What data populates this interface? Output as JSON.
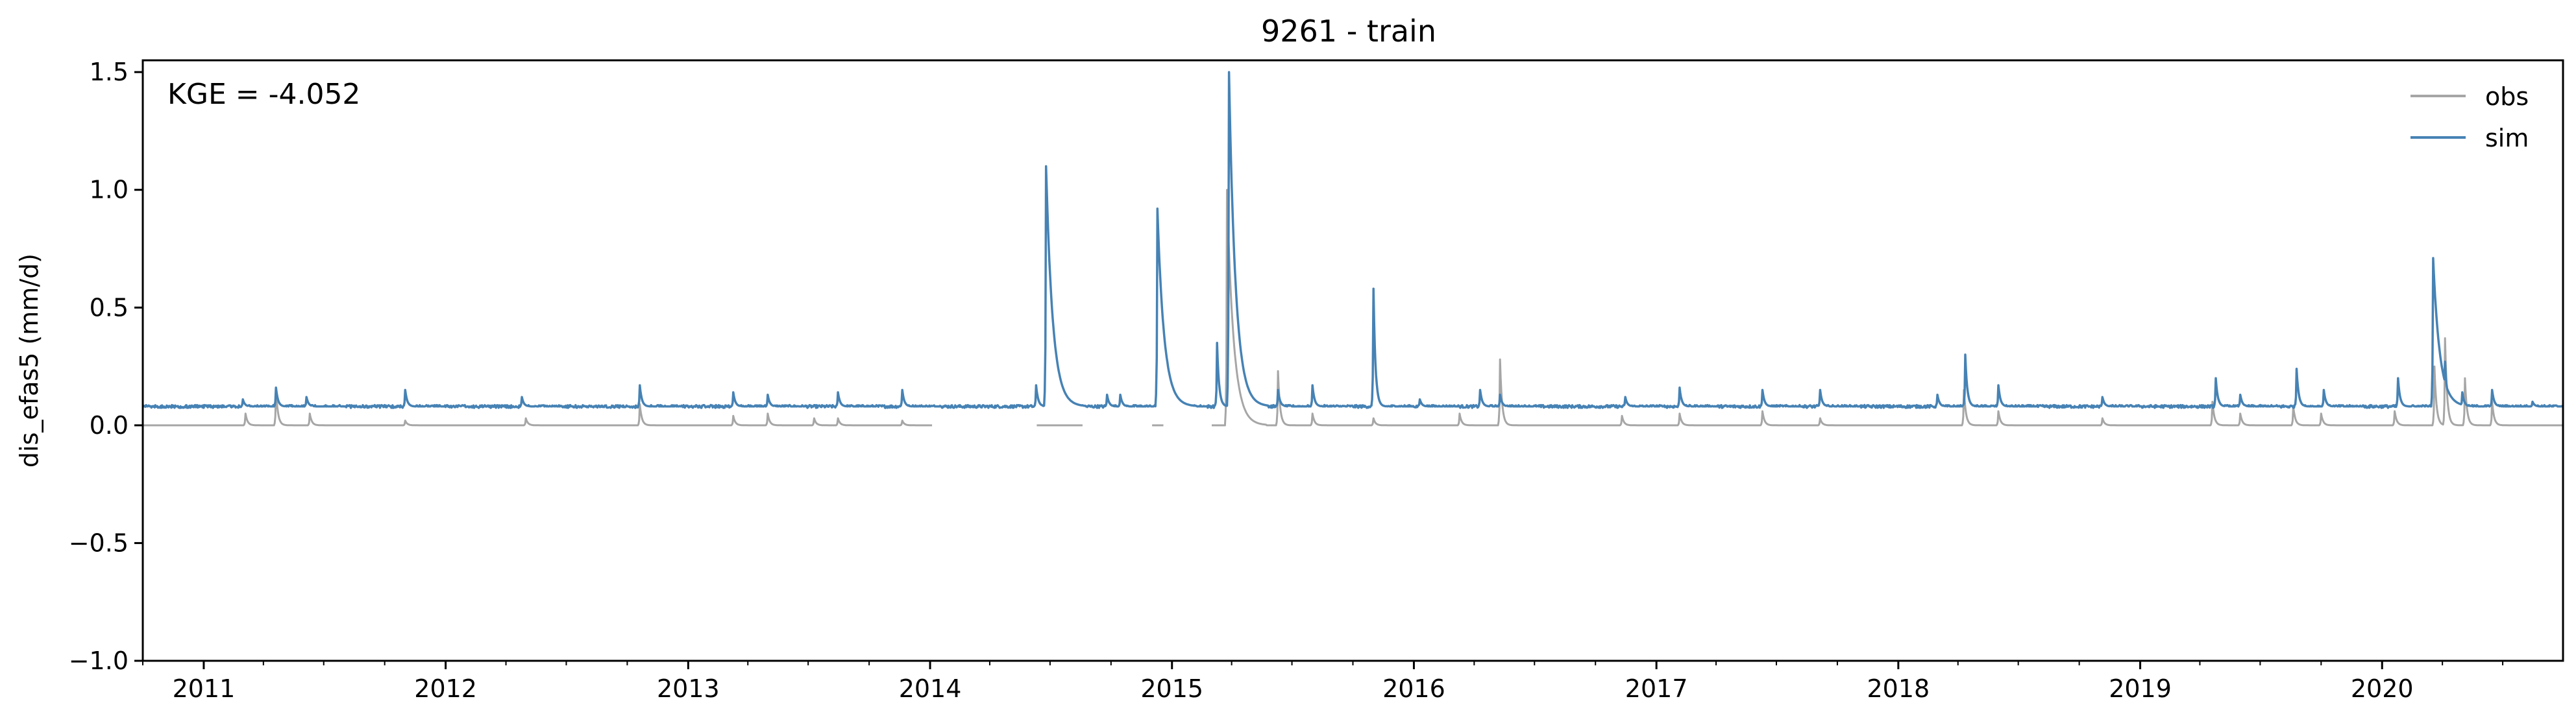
{
  "chart_data": {
    "type": "line",
    "title": "9261 - train",
    "ylabel": "dis_efas5 (mm/d)",
    "xlabel": "",
    "xlim": [
      "2010-10-01",
      "2020-09-30"
    ],
    "ylim": [
      -1.0,
      1.55
    ],
    "y_ticks": [
      "1.5",
      "1.0",
      "0.5",
      "0.0",
      "−0.5",
      "−1.0"
    ],
    "x_ticks": [
      "2011",
      "2012",
      "2013",
      "2014",
      "2015",
      "2016",
      "2017",
      "2018",
      "2019",
      "2020"
    ],
    "annotation": "KGE = -4.052",
    "legend_position": "upper right",
    "grid": false,
    "series": [
      {
        "name": "obs",
        "color": "#a6a6a6",
        "baseline": 0.0,
        "gaps": [
          [
            "2014-01-05",
            "2014-06-10"
          ],
          [
            "2014-08-20",
            "2014-12-01"
          ],
          [
            "2014-12-20",
            "2015-03-01"
          ]
        ],
        "peaks": [
          [
            "2011-03-05",
            0.05
          ],
          [
            "2011-04-20",
            0.15
          ],
          [
            "2011-06-10",
            0.05
          ],
          [
            "2011-11-01",
            0.02
          ],
          [
            "2012-05-01",
            0.03
          ],
          [
            "2012-10-20",
            0.09
          ],
          [
            "2013-03-10",
            0.04
          ],
          [
            "2013-05-01",
            0.05
          ],
          [
            "2013-07-10",
            0.03
          ],
          [
            "2013-08-15",
            0.03
          ],
          [
            "2013-11-20",
            0.02
          ],
          [
            "2015-03-25",
            1.0
          ],
          [
            "2015-06-10",
            0.23
          ],
          [
            "2015-08-01",
            0.05
          ],
          [
            "2015-11-01",
            0.03
          ],
          [
            "2016-03-10",
            0.05
          ],
          [
            "2016-05-10",
            0.28
          ],
          [
            "2016-11-10",
            0.04
          ],
          [
            "2017-02-05",
            0.05
          ],
          [
            "2017-06-10",
            0.06
          ],
          [
            "2017-09-05",
            0.03
          ],
          [
            "2018-04-10",
            0.15
          ],
          [
            "2018-06-01",
            0.06
          ],
          [
            "2018-11-05",
            0.03
          ],
          [
            "2019-04-20",
            0.1
          ],
          [
            "2019-06-01",
            0.05
          ],
          [
            "2019-08-20",
            0.08
          ],
          [
            "2019-10-01",
            0.05
          ],
          [
            "2020-01-20",
            0.06
          ],
          [
            "2020-03-20",
            0.25
          ],
          [
            "2020-04-05",
            0.37
          ],
          [
            "2020-05-05",
            0.2
          ],
          [
            "2020-06-15",
            0.1
          ]
        ]
      },
      {
        "name": "sim",
        "color": "#4682b4",
        "baseline": 0.08,
        "peaks": [
          [
            "2011-03-01",
            0.11
          ],
          [
            "2011-04-20",
            0.16
          ],
          [
            "2011-06-05",
            0.12
          ],
          [
            "2011-11-01",
            0.15
          ],
          [
            "2012-04-25",
            0.12
          ],
          [
            "2012-10-20",
            0.17
          ],
          [
            "2013-03-10",
            0.14
          ],
          [
            "2013-05-01",
            0.13
          ],
          [
            "2013-08-15",
            0.14
          ],
          [
            "2013-11-20",
            0.15
          ],
          [
            "2014-06-10",
            0.17
          ],
          [
            "2014-06-25",
            1.1
          ],
          [
            "2014-09-25",
            0.13
          ],
          [
            "2014-10-15",
            0.13
          ],
          [
            "2014-12-10",
            0.92
          ],
          [
            "2014-12-25",
            0.27
          ],
          [
            "2015-03-10",
            0.35
          ],
          [
            "2015-03-28",
            1.5
          ],
          [
            "2015-06-10",
            0.15
          ],
          [
            "2015-08-01",
            0.17
          ],
          [
            "2015-11-01",
            0.58
          ],
          [
            "2016-01-10",
            0.11
          ],
          [
            "2016-04-10",
            0.15
          ],
          [
            "2016-05-10",
            0.13
          ],
          [
            "2016-11-15",
            0.12
          ],
          [
            "2017-02-05",
            0.16
          ],
          [
            "2017-06-10",
            0.15
          ],
          [
            "2017-09-05",
            0.15
          ],
          [
            "2018-03-01",
            0.13
          ],
          [
            "2018-04-12",
            0.3
          ],
          [
            "2018-06-01",
            0.17
          ],
          [
            "2018-11-05",
            0.12
          ],
          [
            "2019-04-25",
            0.2
          ],
          [
            "2019-06-01",
            0.13
          ],
          [
            "2019-08-25",
            0.24
          ],
          [
            "2019-10-05",
            0.15
          ],
          [
            "2020-01-25",
            0.2
          ],
          [
            "2020-03-18",
            0.71
          ],
          [
            "2020-04-05",
            0.27
          ],
          [
            "2020-05-01",
            0.14
          ],
          [
            "2020-06-15",
            0.15
          ],
          [
            "2020-08-15",
            0.1
          ]
        ]
      }
    ]
  }
}
